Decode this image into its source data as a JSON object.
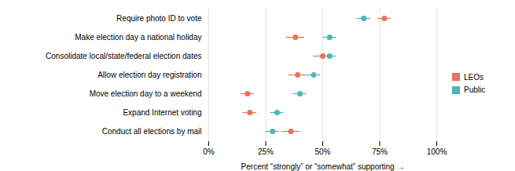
{
  "chart_data": {
    "type": "dot",
    "orientation": "horizontal",
    "xlabel": "Percent “strongly” or “somewhat” supporting",
    "categories": [
      "Require photo ID to vote",
      "Make election day a national holiday",
      "Consolidate local/state/federal election dates",
      "Allow election day registration",
      "Move election day to a weekend",
      "Expand Internet voting",
      "Conduct all elections by mail"
    ],
    "series": [
      {
        "name": "LEOs",
        "color": "#E8735A",
        "values": [
          77,
          38,
          50,
          39,
          17,
          18,
          36
        ],
        "errors": [
          3,
          4,
          4,
          4,
          3,
          3,
          4
        ]
      },
      {
        "name": "Public",
        "color": "#49B8B8",
        "values": [
          68,
          53,
          53,
          46,
          40,
          30,
          28
        ],
        "errors": [
          3,
          3,
          3,
          3,
          3,
          3,
          3
        ]
      }
    ],
    "xlim": [
      0,
      100
    ],
    "xticks": [
      {
        "value": 0,
        "label": "0%"
      },
      {
        "value": 25,
        "label": "25%"
      },
      {
        "value": 50,
        "label": "50%"
      },
      {
        "value": 75,
        "label": "75%"
      },
      {
        "value": 100,
        "label": "100%"
      }
    ],
    "grid": true,
    "legend": "right"
  }
}
